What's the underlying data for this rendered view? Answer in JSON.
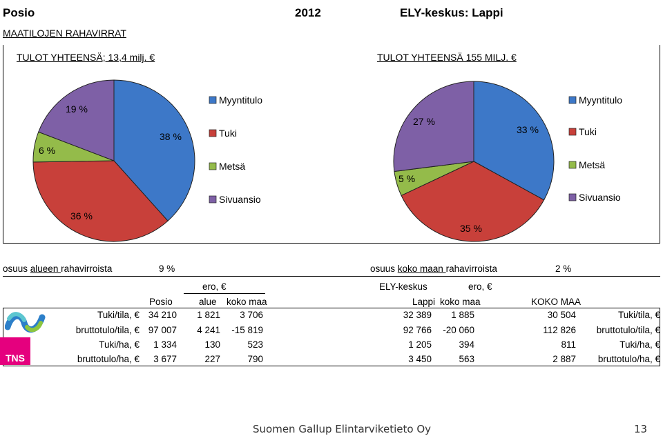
{
  "header": {
    "region": "Posio",
    "year": "2012",
    "ely": "ELY-keskus: Lappi",
    "subtitle": "MAATILOJEN RAHAVIRRAT"
  },
  "chart_data": [
    {
      "type": "pie",
      "title": "TULOT YHTEENSÄ; 13,4 milj. €",
      "categories": [
        "Myyntitulo",
        "Tuki",
        "Metsä",
        "Sivuansio"
      ],
      "values": [
        38,
        36,
        6,
        19
      ],
      "labels": [
        "38 %",
        "36 %",
        "6 %",
        "19 %"
      ],
      "legend": "right"
    },
    {
      "type": "pie",
      "title": "TULOT YHTEENSÄ 155 MILJ. €",
      "categories": [
        "Myyntitulo",
        "Tuki",
        "Metsä",
        "Sivuansio"
      ],
      "values": [
        33,
        35,
        5,
        27
      ],
      "labels": [
        "33 %",
        "35 %",
        "5 %",
        "27 %"
      ],
      "legend": "right"
    }
  ],
  "colors": {
    "Myyntitulo": "#3d78c8",
    "Tuki": "#c8403a",
    "Metsä": "#94bb4a",
    "Sivuansio": "#7e60a6"
  },
  "share": {
    "left_pre": "osuus ",
    "left_u": "alueen ",
    "left_post": "rahavirroista",
    "left_val": "9 %",
    "right_pre": "osuus ",
    "right_u": "koko maan ",
    "right_post": "rahavirroista",
    "right_val": "2 %"
  },
  "table": {
    "hdr_ero1": "ero, €",
    "hdr_posio": "Posio",
    "hdr_alue": "alue",
    "hdr_kokomaa1": "koko maa",
    "hdr_ely": "ELY-keskus",
    "hdr_ero2": "ero, €",
    "hdr_lappi": "Lappi",
    "hdr_kokomaa2": "koko maa",
    "hdr_koko_maa": "KOKO MAA",
    "rows": [
      {
        "label": "Tuki/tila, €",
        "posio": "34 210",
        "ero_alue": "1 821",
        "ero_koko": "3 706",
        "lappi": "32 389",
        "ero_lappi": "1 885",
        "koko": "30 504",
        "label2": "Tuki/tila, €"
      },
      {
        "label": "bruttotulo/tila, €",
        "posio": "97 007",
        "ero_alue": "4 241",
        "ero_koko": "-15 819",
        "lappi": "92 766",
        "ero_lappi": "-20 060",
        "koko": "112 826",
        "label2": "bruttotulo/tila, €"
      },
      {
        "label": "Tuki/ha, €",
        "posio": "1 334",
        "ero_alue": "130",
        "ero_koko": "523",
        "lappi": "1 205",
        "ero_lappi": "394",
        "koko": "811",
        "label2": "Tuki/ha, €"
      },
      {
        "label": "bruttotulo/ha, €",
        "posio": "3 677",
        "ero_alue": "227",
        "ero_koko": "790",
        "lappi": "3 450",
        "ero_lappi": "563",
        "koko": "2 887",
        "label2": "bruttotulo/ha, €"
      }
    ]
  },
  "logos": {
    "tns": "TNS"
  },
  "footer": {
    "company": "Suomen Gallup Elintarviketieto Oy",
    "page": "13"
  }
}
